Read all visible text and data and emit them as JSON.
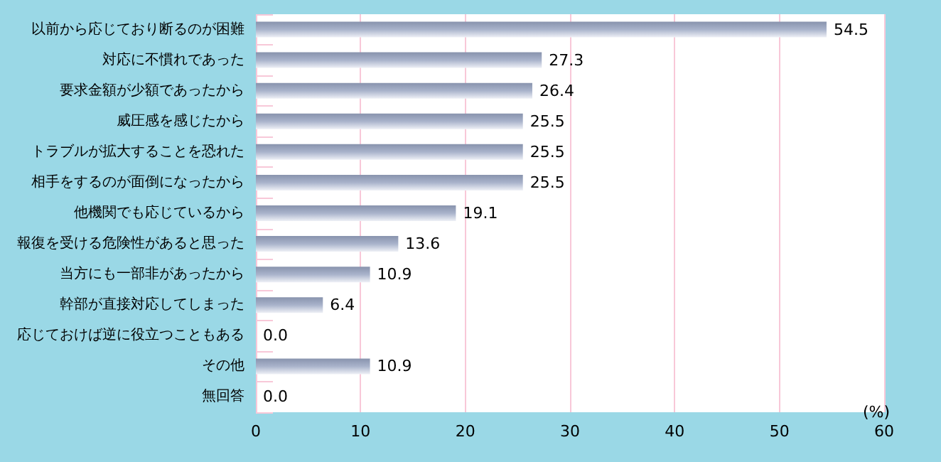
{
  "chart_data": {
    "type": "bar",
    "orientation": "horizontal",
    "categories": [
      "以前から応じており断るのが困難",
      "対応に不慣れであった",
      "要求金額が少額であったから",
      "威圧感を感じたから",
      "トラブルが拡大することを恐れた",
      "相手をするのが面倒になったから",
      "他機関でも応じているから",
      "報復を受ける危険性があると思った",
      "当方にも一部非があったから",
      "幹部が直接対応してしまった",
      "応じておけば逆に役立つこともある",
      "その他",
      "無回答"
    ],
    "values": [
      54.5,
      27.3,
      26.4,
      25.5,
      25.5,
      25.5,
      19.1,
      13.6,
      10.9,
      6.4,
      0.0,
      10.9,
      0.0
    ],
    "value_labels": [
      "54.5",
      "27.3",
      "26.4",
      "25.5",
      "25.5",
      "25.5",
      "19.1",
      "13.6",
      "10.9",
      "6.4",
      "0.0",
      "10.9",
      "0.0"
    ],
    "color": "#a9b3cb",
    "xlabel": "(%)",
    "xlim": [
      0,
      60
    ],
    "xticks": [
      0,
      10,
      20,
      30,
      40,
      50,
      60
    ],
    "grid": "x"
  }
}
